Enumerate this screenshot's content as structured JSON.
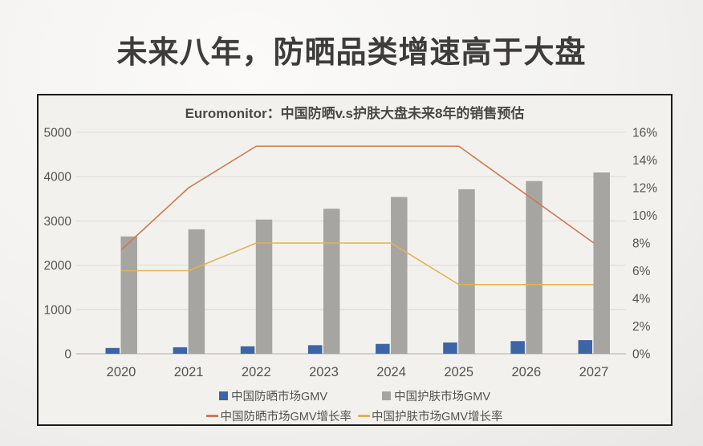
{
  "page": {
    "title": "未来八年，防晒品类增速高于大盘"
  },
  "chart_data": {
    "type": "bar",
    "subtype": "combo-bar-line-dual-axis",
    "title": "Euromonitor：中国防晒v.s护肤大盘未来8年的销售预估",
    "categories": [
      "2020",
      "2021",
      "2022",
      "2023",
      "2024",
      "2025",
      "2026",
      "2027"
    ],
    "series": [
      {
        "name": "中国防晒市场GMV",
        "type": "bar",
        "axis": "left",
        "color": "#3c65a6",
        "values": [
          130,
          146,
          168,
          193,
          222,
          255,
          285,
          307
        ]
      },
      {
        "name": "中国护肤市场GMV",
        "type": "bar",
        "axis": "left",
        "color": "#a7a5a2",
        "values": [
          2650,
          2810,
          3030,
          3275,
          3540,
          3715,
          3900,
          4095
        ]
      },
      {
        "name": "中国防晒市场GMV增长率",
        "type": "line",
        "axis": "right",
        "color": "#ca7b52",
        "values": [
          7.5,
          12,
          15,
          15,
          15,
          15,
          11.5,
          8
        ]
      },
      {
        "name": "中国护肤市场GMV增长率",
        "type": "line",
        "axis": "right",
        "color": "#dfb457",
        "values": [
          6,
          6,
          8,
          8,
          8,
          5,
          5,
          5
        ]
      }
    ],
    "left_axis": {
      "min": 0,
      "max": 5000,
      "step": 1000,
      "ticks": [
        "0",
        "1000",
        "2000",
        "3000",
        "4000",
        "5000"
      ]
    },
    "right_axis": {
      "min": 0,
      "max": 16,
      "step": 2,
      "ticks": [
        "0%",
        "2%",
        "4%",
        "6%",
        "8%",
        "10%",
        "12%",
        "14%",
        "16%"
      ]
    },
    "grid": true,
    "legend_position": "bottom",
    "colors": {
      "gridline": "#dcdad7",
      "baseline": "#c6c4c1",
      "axis_text": "#55534f"
    }
  }
}
